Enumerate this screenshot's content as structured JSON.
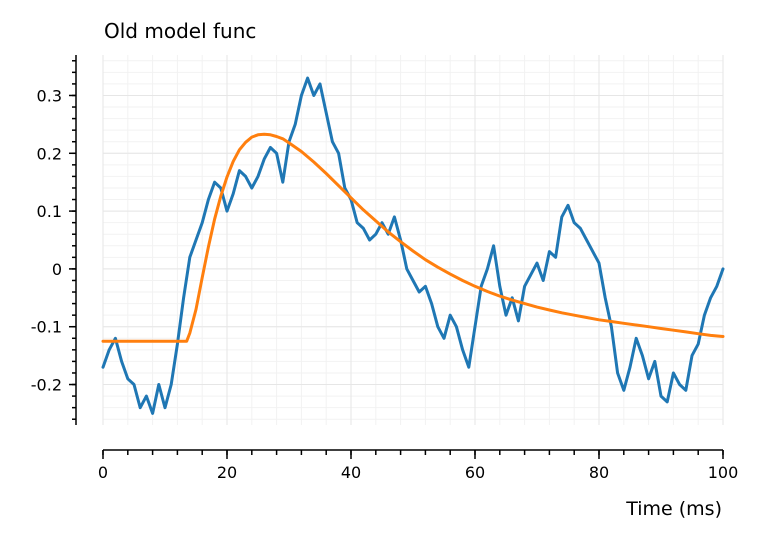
{
  "chart_data": {
    "type": "line",
    "title": "Old model func",
    "xlabel": "Time (ms)",
    "ylabel": "",
    "xlim": [
      0,
      100
    ],
    "ylim": [
      -0.27,
      0.37
    ],
    "x_ticks": [
      0,
      20,
      40,
      60,
      80,
      100
    ],
    "x_tick_labels": [
      "0",
      "20",
      "40",
      "60",
      "80",
      "100"
    ],
    "y_ticks": [
      -0.2,
      -0.1,
      0,
      0.1,
      0.2,
      0.3
    ],
    "y_tick_labels": [
      "-0.2",
      "-0.1",
      "0",
      "0.1",
      "0.2",
      "0.3"
    ],
    "grid": true,
    "legend": "none",
    "series": [
      {
        "color": "#1f77b4",
        "x": [
          0,
          1,
          2,
          3,
          4,
          5,
          6,
          7,
          8,
          9,
          10,
          11,
          12,
          13,
          14,
          15,
          16,
          17,
          18,
          19,
          20,
          21,
          22,
          23,
          24,
          25,
          26,
          27,
          28,
          29,
          30,
          31,
          32,
          33,
          34,
          35,
          36,
          37,
          38,
          39,
          40,
          41,
          42,
          43,
          44,
          45,
          46,
          47,
          48,
          49,
          50,
          51,
          52,
          53,
          54,
          55,
          56,
          57,
          58,
          59,
          60,
          61,
          62,
          63,
          64,
          65,
          66,
          67,
          68,
          69,
          70,
          71,
          72,
          73,
          74,
          75,
          76,
          77,
          78,
          79,
          80,
          81,
          82,
          83,
          84,
          85,
          86,
          87,
          88,
          89,
          90,
          91,
          92,
          93,
          94,
          95,
          96,
          97,
          98,
          99,
          100
        ],
        "values": [
          -0.17,
          -0.14,
          -0.12,
          -0.16,
          -0.19,
          -0.2,
          -0.24,
          -0.22,
          -0.25,
          -0.2,
          -0.24,
          -0.2,
          -0.13,
          -0.05,
          0.02,
          0.05,
          0.08,
          0.12,
          0.15,
          0.14,
          0.1,
          0.13,
          0.17,
          0.16,
          0.14,
          0.16,
          0.19,
          0.21,
          0.2,
          0.15,
          0.22,
          0.25,
          0.3,
          0.33,
          0.3,
          0.32,
          0.27,
          0.22,
          0.2,
          0.14,
          0.12,
          0.08,
          0.07,
          0.05,
          0.06,
          0.08,
          0.06,
          0.09,
          0.05,
          0.0,
          -0.02,
          -0.04,
          -0.03,
          -0.06,
          -0.1,
          -0.12,
          -0.08,
          -0.1,
          -0.14,
          -0.17,
          -0.1,
          -0.03,
          0.0,
          0.04,
          -0.03,
          -0.08,
          -0.05,
          -0.09,
          -0.03,
          -0.01,
          0.01,
          -0.02,
          0.03,
          0.02,
          0.09,
          0.11,
          0.08,
          0.07,
          0.05,
          0.03,
          0.01,
          -0.05,
          -0.1,
          -0.18,
          -0.21,
          -0.17,
          -0.12,
          -0.15,
          -0.19,
          -0.16,
          -0.22,
          -0.23,
          -0.18,
          -0.2,
          -0.21,
          -0.15,
          -0.13,
          -0.08,
          -0.05,
          -0.03,
          0.0
        ]
      },
      {
        "color": "#ff7f0e",
        "x": [
          0,
          5,
          10,
          13.5,
          14,
          15,
          16,
          17,
          18,
          19,
          20,
          21,
          22,
          23,
          24,
          25,
          26,
          27,
          28,
          29,
          30,
          32,
          34,
          36,
          38,
          40,
          42,
          44,
          46,
          48,
          50,
          52,
          54,
          56,
          58,
          60,
          62,
          64,
          66,
          68,
          70,
          72,
          74,
          76,
          78,
          80,
          82,
          84,
          86,
          88,
          90,
          92,
          94,
          96,
          98,
          100
        ],
        "values": [
          -0.125,
          -0.125,
          -0.125,
          -0.125,
          -0.111,
          -0.07,
          -0.015,
          0.038,
          0.086,
          0.126,
          0.159,
          0.186,
          0.206,
          0.219,
          0.228,
          0.232,
          0.233,
          0.232,
          0.229,
          0.225,
          0.218,
          0.203,
          0.185,
          0.165,
          0.144,
          0.123,
          0.102,
          0.083,
          0.064,
          0.047,
          0.031,
          0.016,
          0.003,
          -0.009,
          -0.02,
          -0.03,
          -0.039,
          -0.047,
          -0.054,
          -0.06,
          -0.066,
          -0.071,
          -0.076,
          -0.08,
          -0.084,
          -0.088,
          -0.091,
          -0.094,
          -0.097,
          -0.1,
          -0.103,
          -0.106,
          -0.109,
          -0.112,
          -0.115,
          -0.117
        ]
      }
    ]
  }
}
